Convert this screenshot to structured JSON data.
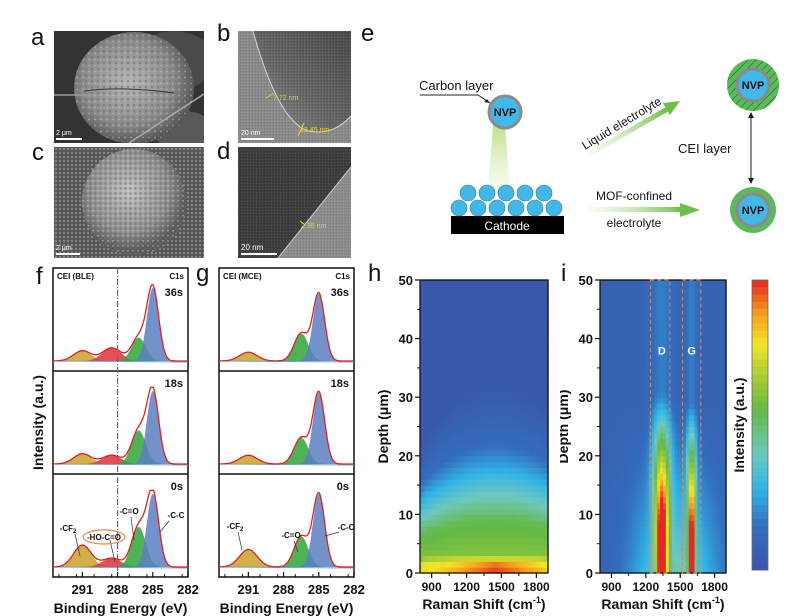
{
  "panels": {
    "a": {
      "label": "a",
      "scale": "2 μm"
    },
    "b": {
      "label": "b",
      "scale": "20 nm",
      "measurements": [
        "7.72 nm",
        "13.45 nm"
      ]
    },
    "c": {
      "label": "c",
      "scale": "2 μm"
    },
    "d": {
      "label": "d",
      "scale": "20 nm",
      "measurements": [
        "2.35 nm"
      ]
    },
    "e": {
      "label": "e",
      "carbon_layer": "Carbon layer",
      "nvp": "NVP",
      "cathode": "Cathode",
      "liquid_electrolyte": "Liquid electrolyte",
      "mof_line1": "MOF-confined",
      "mof_line2": "electrolyte",
      "cei_layer": "CEI layer"
    },
    "f": {
      "label": "f"
    },
    "g": {
      "label": "g"
    },
    "h": {
      "label": "h"
    },
    "i": {
      "label": "i"
    }
  },
  "colors": {
    "cf2": "#c9a227",
    "hococo": "#e0313a",
    "co": "#2fa43a",
    "cc": "#5a7fc0",
    "envelope": "#e02020",
    "dashline": "#7a4fc9",
    "nvp_blue": "#41b8e8",
    "shell_gray": "#8a8a8a",
    "cei_green": "#5cba5c",
    "arrow_green": "#6cc04a"
  },
  "chart_data": [
    {
      "type": "area",
      "panel": "f",
      "title": "CEI (BLE)",
      "core_level": "C1s",
      "xlabel": "Binding Energy (eV)",
      "ylabel": "Intensity (a.u.)",
      "xlim": [
        293.5,
        282
      ],
      "x_ticks": [
        291,
        288,
        285,
        282
      ],
      "reference_line_x": 288,
      "peaks_ev": {
        "-CF2": 291,
        "-HO-C=O": 288.5,
        "-C=O": 286.2,
        "-C-C": 285
      },
      "series": [
        {
          "name": "36s",
          "peak_heights": {
            "-CF2": 0.14,
            "-HO-C=O": 0.18,
            "-C=O": 0.32,
            "-C-C": 1.0
          }
        },
        {
          "name": "18s",
          "peak_heights": {
            "-CF2": 0.14,
            "-HO-C=O": 0.12,
            "-C=O": 0.46,
            "-C-C": 1.0
          }
        },
        {
          "name": "0s",
          "peak_heights": {
            "-CF2": 0.3,
            "-HO-C=O": 0.12,
            "-C=O": 0.55,
            "-C-C": 1.0
          }
        }
      ],
      "annotations": [
        "-CF2",
        "-HO-C=O",
        "-C=O",
        "-C-C"
      ]
    },
    {
      "type": "area",
      "panel": "g",
      "title": "CEI (MCE)",
      "core_level": "C1s",
      "xlabel": "Binding Energy (eV)",
      "xlim": [
        293.5,
        282
      ],
      "x_ticks": [
        291,
        288,
        285,
        282
      ],
      "peaks_ev": {
        "-CF2": 291,
        "-C=O": 286.5,
        "-C-C": 285
      },
      "series": [
        {
          "name": "36s",
          "peak_heights": {
            "-CF2": 0.12,
            "-C=O": 0.38,
            "-C-C": 0.92
          }
        },
        {
          "name": "18s",
          "peak_heights": {
            "-CF2": 0.12,
            "-C=O": 0.36,
            "-C-C": 0.98
          }
        },
        {
          "name": "0s",
          "peak_heights": {
            "-CF2": 0.24,
            "-C=O": 0.42,
            "-C-C": 1.0
          }
        }
      ],
      "annotations": [
        "-CF2",
        "-C=O",
        "-C-C"
      ]
    },
    {
      "type": "heatmap",
      "panel": "h",
      "xlabel": "Raman Shift (cm-1)",
      "xlabel_main": "Raman Shift (cm",
      "xlabel_sup": "-1",
      "xlabel_close": ")",
      "ylabel": "Depth (μm)",
      "xlim": [
        800,
        1900
      ],
      "ylim": [
        0,
        50
      ],
      "x_ticks": [
        900,
        1200,
        1500,
        1800
      ],
      "y_ticks": [
        0,
        10,
        20,
        30,
        40,
        50
      ],
      "description_levels": {
        "max_depth_red": 2,
        "green_top": 10,
        "cyan_top": 20
      }
    },
    {
      "type": "heatmap",
      "panel": "i",
      "xlabel": "Raman Shift (cm-1)",
      "xlabel_main": "Raman Shift (cm",
      "xlabel_sup": "-1",
      "xlabel_close": ")",
      "ylabel": "Depth (μm)",
      "xlim": [
        800,
        1900
      ],
      "ylim": [
        0,
        50
      ],
      "x_ticks": [
        900,
        1200,
        1500,
        1800
      ],
      "y_ticks": [
        0,
        10,
        20,
        30,
        40,
        50
      ],
      "bands": [
        {
          "name": "D",
          "center": 1340,
          "range": [
            1240,
            1410
          ],
          "red_top_depth": 8,
          "green_top_depth": 17
        },
        {
          "name": "G",
          "center": 1600,
          "range": [
            1520,
            1680
          ],
          "red_top_depth": 6,
          "green_top_depth": 15
        }
      ],
      "colorbar_label": "Intensity (a.u.)"
    }
  ]
}
